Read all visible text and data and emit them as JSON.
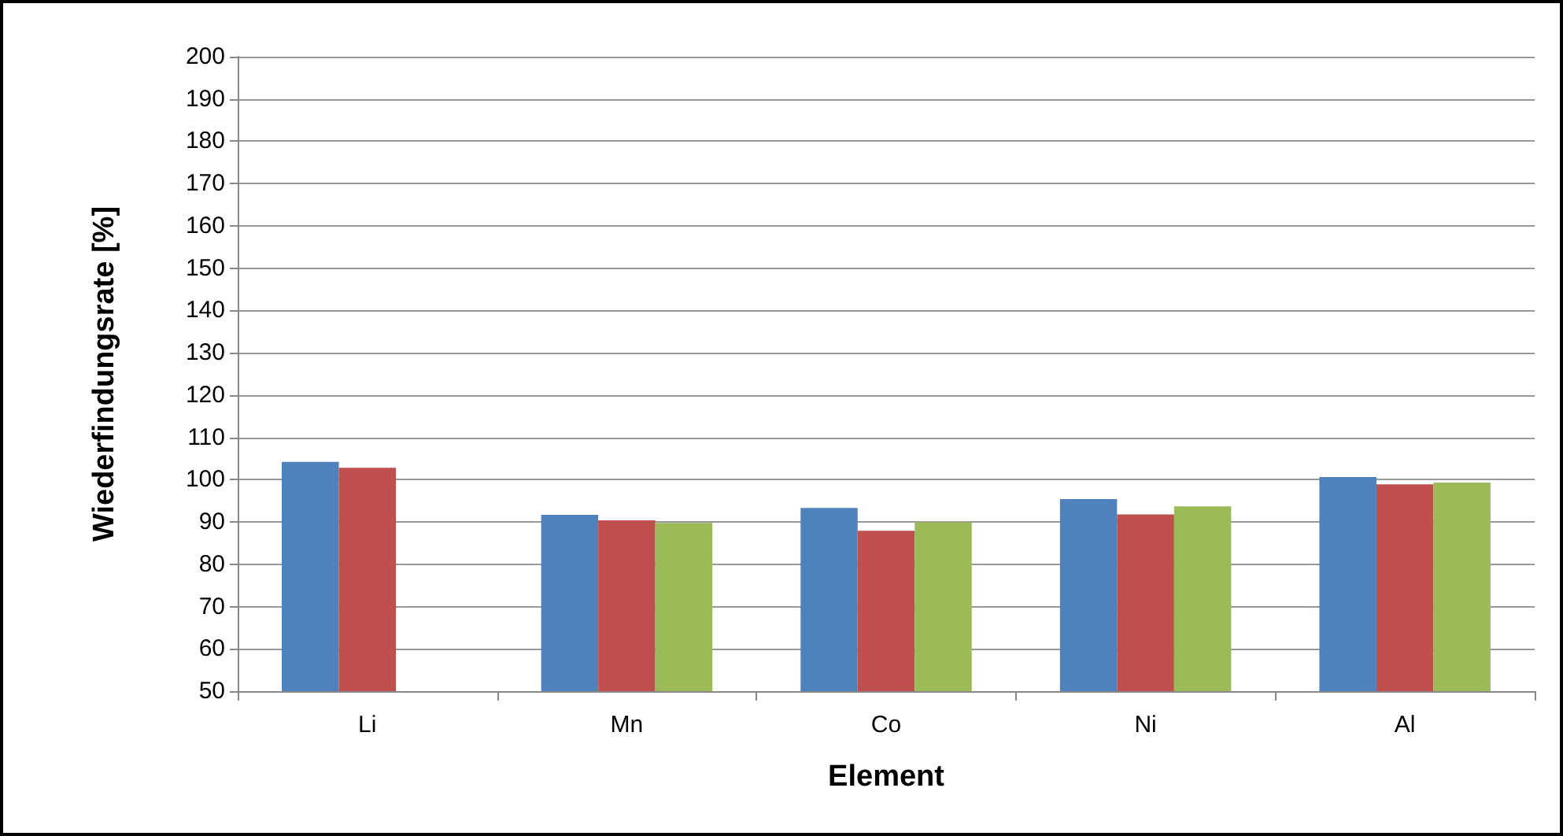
{
  "chart_data": {
    "type": "bar",
    "xlabel": "Element",
    "ylabel": "Wiederfindungsrate [%]",
    "categories": [
      "Li",
      "Mn",
      "Co",
      "Ni",
      "Al"
    ],
    "series": [
      {
        "color": "#4f81bd",
        "values": [
          104.2,
          91.7,
          93.3,
          95.4,
          100.6
        ]
      },
      {
        "color": "#c0504d",
        "values": [
          102.8,
          90.4,
          87.9,
          91.8,
          98.9
        ]
      },
      {
        "color": "#9bbb59",
        "values": [
          null,
          89.8,
          89.9,
          93.7,
          99.3
        ]
      }
    ],
    "ylim": [
      50,
      200
    ],
    "yticks": [
      50,
      60,
      70,
      80,
      90,
      100,
      110,
      120,
      130,
      140,
      150,
      160,
      170,
      180,
      190,
      200
    ],
    "grid": "y"
  }
}
